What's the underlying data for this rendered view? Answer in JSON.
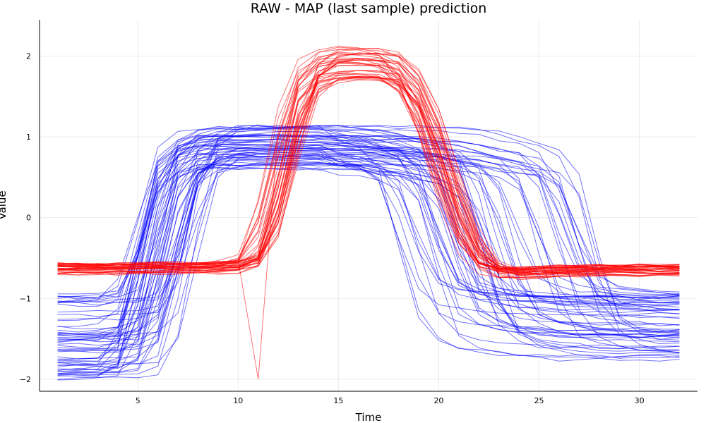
{
  "chart_data": {
    "type": "line",
    "title": "RAW - MAP (last sample) prediction",
    "xlabel": "Time",
    "ylabel": "Value",
    "xlim": [
      0.1,
      32.9
    ],
    "ylim": [
      -2.15,
      2.45
    ],
    "x_ticks": [
      5,
      10,
      15,
      20,
      25,
      30
    ],
    "y_ticks": [
      -2,
      -1,
      0,
      1,
      2
    ],
    "x_tick_labels": [
      "5",
      "10",
      "15",
      "20",
      "25",
      "30"
    ],
    "y_tick_labels": [
      "−2",
      "−1",
      "0",
      "1",
      "2"
    ],
    "grid": true,
    "legend": "none",
    "series_groups": [
      {
        "color": "#0000ff",
        "opacity": 0.55,
        "line_count": 60,
        "x": [
          1,
          2,
          3,
          4,
          5,
          6,
          7,
          8,
          9,
          10,
          11,
          12,
          13,
          14,
          15,
          16,
          17,
          18,
          19,
          20,
          21,
          22,
          23,
          24,
          25,
          26,
          27,
          28,
          29,
          30,
          31,
          32
        ],
        "representative_values": [
          -1.15,
          -1.15,
          -1.15,
          -1.15,
          -1.05,
          -0.2,
          0.75,
          0.95,
          1.0,
          1.0,
          1.0,
          1.0,
          1.0,
          1.0,
          1.0,
          1.0,
          1.0,
          0.98,
          0.95,
          0.9,
          0.85,
          0.8,
          0.6,
          -0.2,
          -0.85,
          -1.0,
          -1.05,
          -1.08,
          -1.1,
          -1.12,
          -1.12,
          -1.12
        ]
      },
      {
        "color": "#ff0000",
        "opacity": 0.55,
        "line_count": 40,
        "x": [
          1,
          2,
          3,
          4,
          5,
          6,
          7,
          8,
          9,
          10,
          11,
          12,
          13,
          14,
          15,
          16,
          17,
          18,
          19,
          20,
          21,
          22,
          23,
          24,
          25,
          26,
          27,
          28,
          29,
          30,
          31,
          32
        ],
        "representative_values": [
          -0.63,
          -0.63,
          -0.63,
          -0.63,
          -0.63,
          -0.62,
          -0.62,
          -0.62,
          -0.62,
          -0.6,
          -0.5,
          0.4,
          1.5,
          1.8,
          1.85,
          1.85,
          1.85,
          1.75,
          1.4,
          0.7,
          -0.1,
          -0.55,
          -0.68,
          -0.68,
          -0.67,
          -0.66,
          -0.66,
          -0.65,
          -0.65,
          -0.65,
          -0.65,
          -0.65
        ]
      }
    ]
  }
}
